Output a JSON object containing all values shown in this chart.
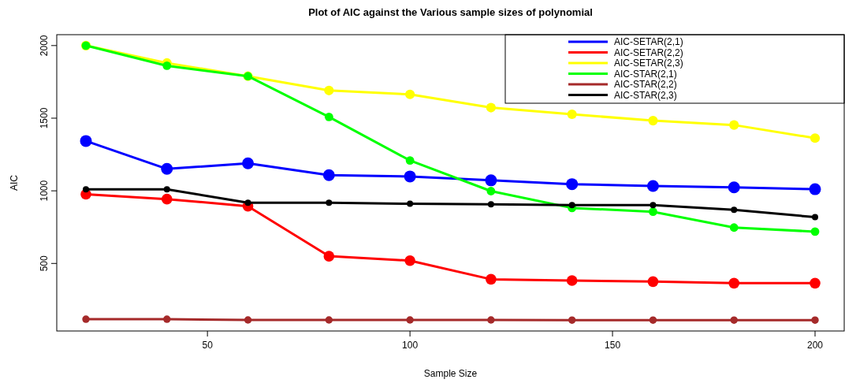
{
  "chart_data": {
    "type": "line",
    "title": "Plot of AIC against the Various sample sizes of polynomial",
    "xlabel": "Sample Size",
    "ylabel": "AIC",
    "x": [
      20,
      40,
      60,
      80,
      100,
      120,
      140,
      160,
      180,
      200
    ],
    "xlim": [
      12.8,
      207.2
    ],
    "xticks": [
      50,
      100,
      150,
      200
    ],
    "ylim": [
      35,
      2075
    ],
    "yticks": [
      500,
      1000,
      1500,
      2000
    ],
    "grid": false,
    "legend": "top right",
    "marker": "circle",
    "line_style": "solid",
    "series": [
      {
        "name": "AIC-SETAR(2,1)",
        "color": "#0000ff",
        "values": [
          1343,
          1151,
          1189,
          1108,
          1099,
          1072,
          1046,
          1033,
          1024,
          1011
        ]
      },
      {
        "name": "AIC-SETAR(2,2)",
        "color": "#ff0000",
        "values": [
          976,
          943,
          894,
          550,
          519,
          391,
          382,
          375,
          364,
          364
        ]
      },
      {
        "name": "AIC-SETAR(2,3)",
        "color": "#ffff00",
        "values": [
          2000,
          1880,
          1789,
          1691,
          1664,
          1573,
          1527,
          1483,
          1453,
          1363
        ]
      },
      {
        "name": "AIC-STAR(2,1)",
        "color": "#00ff00",
        "values": [
          2000,
          1861,
          1789,
          1509,
          1209,
          998,
          882,
          856,
          747,
          719
        ]
      },
      {
        "name": "AIC-STAR(2,2)",
        "color": "#a52a2a",
        "values": [
          116,
          116,
          111,
          111,
          111,
          111,
          110,
          110,
          110,
          110
        ]
      },
      {
        "name": "AIC-STAR(2,3)",
        "color": "#000000",
        "values": [
          1010,
          1010,
          918,
          918,
          911,
          907,
          902,
          902,
          869,
          819
        ]
      }
    ]
  }
}
